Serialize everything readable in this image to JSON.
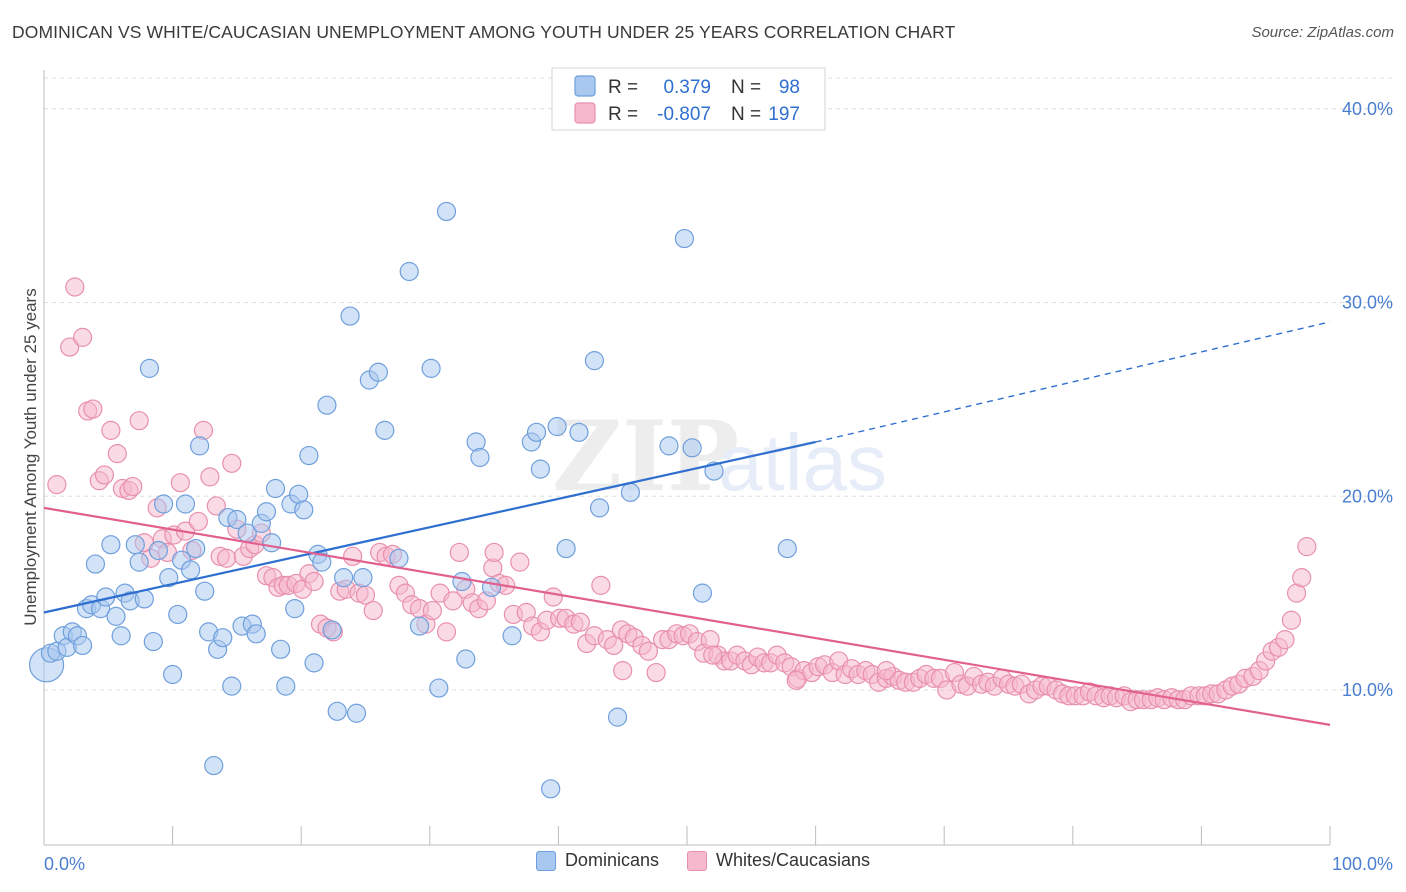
{
  "header": {
    "title": "DOMINICAN VS WHITE/CAUCASIAN UNEMPLOYMENT AMONG YOUTH UNDER 25 YEARS CORRELATION CHART",
    "source": "Source: ZipAtlas.com"
  },
  "watermark": {
    "zip": "ZIP",
    "atlas": "atlas"
  },
  "colors": {
    "blue_fill": "#a8c8ef",
    "blue_stroke": "#6f9fdc",
    "blue_line": "#2f6fd0",
    "pink_fill": "#f6b8cc",
    "pink_stroke": "#e88fae",
    "pink_line": "#e0608f",
    "tick_label": "#4a7ed0",
    "grid": "#dddddd"
  },
  "stats_legend": {
    "rows": [
      {
        "r_label": "R =",
        "r_value": "0.379",
        "n_label": "N =",
        "n_value": "98",
        "color": "blue"
      },
      {
        "r_label": "R =",
        "r_value": "-0.807",
        "n_label": "N =",
        "n_value": "197",
        "color": "pink"
      }
    ]
  },
  "bottom_legend": {
    "items": [
      {
        "label": "Dominicans",
        "color": "blue"
      },
      {
        "label": "Whites/Caucasians",
        "color": "pink"
      }
    ]
  },
  "chart_data": {
    "type": "scatter",
    "title": "DOMINICAN VS WHITE/CAUCASIAN UNEMPLOYMENT AMONG YOUTH UNDER 25 YEARS CORRELATION CHART",
    "xlabel": "",
    "ylabel": "Unemployment Among Youth under 25 years",
    "xlim": [
      0,
      100
    ],
    "ylim": [
      2,
      42
    ],
    "x_tick_labels": [
      "0.0%",
      "100.0%"
    ],
    "y_ticks": [
      10,
      20,
      30,
      40
    ],
    "y_tick_labels": [
      "10.0%",
      "20.0%",
      "30.0%",
      "40.0%"
    ],
    "grid": true,
    "legend_position": "top-center",
    "series": [
      {
        "name": "Dominicans",
        "color": "blue",
        "trend": {
          "x": [
            0,
            60
          ],
          "y": [
            14.0,
            22.8
          ],
          "dashed_to_x": 100,
          "dashed_to_y": 29.0
        },
        "points": [
          [
            0.2,
            11.3
          ],
          [
            0.5,
            11.9
          ],
          [
            1,
            12.0
          ],
          [
            1.5,
            12.8
          ],
          [
            1.8,
            12.2
          ],
          [
            2.2,
            13.0
          ],
          [
            2.6,
            12.8
          ],
          [
            3,
            12.3
          ],
          [
            3.3,
            14.2
          ],
          [
            3.7,
            14.4
          ],
          [
            4,
            16.5
          ],
          [
            4.4,
            14.2
          ],
          [
            4.8,
            14.8
          ],
          [
            5.2,
            17.5
          ],
          [
            5.6,
            13.8
          ],
          [
            6,
            12.8
          ],
          [
            6.3,
            15.0
          ],
          [
            6.7,
            14.6
          ],
          [
            7.1,
            17.5
          ],
          [
            7.4,
            16.6
          ],
          [
            7.8,
            14.7
          ],
          [
            8.2,
            26.6
          ],
          [
            8.5,
            12.5
          ],
          [
            8.9,
            17.2
          ],
          [
            9.3,
            19.6
          ],
          [
            9.7,
            15.8
          ],
          [
            10,
            10.8
          ],
          [
            10.4,
            13.9
          ],
          [
            10.7,
            16.7
          ],
          [
            11,
            19.6
          ],
          [
            11.4,
            16.2
          ],
          [
            11.8,
            17.3
          ],
          [
            12.1,
            22.6
          ],
          [
            12.5,
            15.1
          ],
          [
            12.8,
            13.0
          ],
          [
            13.2,
            6.1
          ],
          [
            13.5,
            12.1
          ],
          [
            13.9,
            12.7
          ],
          [
            14.3,
            18.9
          ],
          [
            14.6,
            10.2
          ],
          [
            15,
            18.8
          ],
          [
            15.4,
            13.3
          ],
          [
            15.8,
            18.1
          ],
          [
            16.2,
            13.4
          ],
          [
            16.5,
            12.9
          ],
          [
            16.9,
            18.6
          ],
          [
            17.3,
            19.2
          ],
          [
            17.7,
            17.6
          ],
          [
            18,
            20.4
          ],
          [
            18.4,
            12.1
          ],
          [
            18.8,
            10.2
          ],
          [
            19.2,
            19.6
          ],
          [
            19.5,
            14.2
          ],
          [
            19.8,
            20.1
          ],
          [
            20.2,
            19.3
          ],
          [
            20.6,
            22.1
          ],
          [
            21,
            11.4
          ],
          [
            21.3,
            17.0
          ],
          [
            21.6,
            16.6
          ],
          [
            22,
            24.7
          ],
          [
            22.4,
            13.1
          ],
          [
            22.8,
            8.9
          ],
          [
            23.3,
            15.8
          ],
          [
            23.8,
            29.3
          ],
          [
            24.3,
            8.8
          ],
          [
            24.8,
            15.8
          ],
          [
            25.3,
            26.0
          ],
          [
            26,
            26.4
          ],
          [
            26.5,
            23.4
          ],
          [
            27.6,
            16.8
          ],
          [
            28.4,
            31.6
          ],
          [
            29.2,
            13.3
          ],
          [
            30.1,
            26.6
          ],
          [
            30.7,
            10.1
          ],
          [
            31.3,
            34.7
          ],
          [
            32.5,
            15.6
          ],
          [
            32.8,
            11.6
          ],
          [
            33.6,
            22.8
          ],
          [
            33.9,
            22.0
          ],
          [
            34.8,
            15.3
          ],
          [
            36.4,
            12.8
          ],
          [
            37.9,
            22.8
          ],
          [
            38.3,
            23.3
          ],
          [
            38.6,
            21.4
          ],
          [
            39.4,
            4.9
          ],
          [
            39.9,
            23.6
          ],
          [
            40.6,
            17.3
          ],
          [
            41.6,
            23.3
          ],
          [
            42.8,
            27.0
          ],
          [
            43.2,
            19.4
          ],
          [
            44.6,
            8.6
          ],
          [
            45.6,
            20.2
          ],
          [
            48.6,
            22.6
          ],
          [
            49.8,
            33.3
          ],
          [
            50.4,
            22.5
          ],
          [
            51.2,
            15.0
          ],
          [
            57.8,
            17.3
          ],
          [
            52.1,
            21.3
          ]
        ]
      },
      {
        "name": "Whites/Caucasians",
        "color": "pink",
        "trend": {
          "x": [
            0,
            100
          ],
          "y": [
            19.4,
            8.2
          ]
        },
        "points": [
          [
            1,
            20.6
          ],
          [
            2,
            27.7
          ],
          [
            2.4,
            30.8
          ],
          [
            3,
            28.2
          ],
          [
            3.4,
            24.4
          ],
          [
            3.8,
            24.5
          ],
          [
            4.3,
            20.8
          ],
          [
            4.7,
            21.1
          ],
          [
            5.2,
            23.4
          ],
          [
            5.7,
            22.2
          ],
          [
            6.1,
            20.4
          ],
          [
            6.6,
            20.3
          ],
          [
            6.9,
            20.5
          ],
          [
            7.4,
            23.9
          ],
          [
            7.8,
            17.6
          ],
          [
            8.3,
            16.8
          ],
          [
            8.8,
            19.4
          ],
          [
            9.2,
            17.8
          ],
          [
            9.6,
            17.1
          ],
          [
            10.1,
            18.0
          ],
          [
            10.6,
            20.7
          ],
          [
            11,
            18.2
          ],
          [
            11.5,
            17.2
          ],
          [
            12,
            18.7
          ],
          [
            12.4,
            23.4
          ],
          [
            12.9,
            21.0
          ],
          [
            13.4,
            19.5
          ],
          [
            13.7,
            16.9
          ],
          [
            14.2,
            16.8
          ],
          [
            14.6,
            21.7
          ],
          [
            15,
            18.3
          ],
          [
            15.5,
            16.9
          ],
          [
            16,
            17.3
          ],
          [
            16.4,
            17.5
          ],
          [
            16.9,
            18.1
          ],
          [
            17.3,
            15.9
          ],
          [
            17.8,
            15.8
          ],
          [
            18.2,
            15.3
          ],
          [
            18.6,
            15.4
          ],
          [
            19,
            15.4
          ],
          [
            19.6,
            15.5
          ],
          [
            20.1,
            15.2
          ],
          [
            20.6,
            16.0
          ],
          [
            21,
            15.6
          ],
          [
            21.5,
            13.4
          ],
          [
            22,
            13.2
          ],
          [
            22.5,
            13.0
          ],
          [
            23,
            15.1
          ],
          [
            23.5,
            15.2
          ],
          [
            24,
            16.9
          ],
          [
            24.5,
            15.0
          ],
          [
            25,
            14.9
          ],
          [
            25.6,
            14.1
          ],
          [
            26.1,
            17.1
          ],
          [
            26.6,
            16.9
          ],
          [
            27.1,
            17.0
          ],
          [
            27.6,
            15.4
          ],
          [
            28.1,
            15.0
          ],
          [
            28.6,
            14.4
          ],
          [
            29.2,
            14.2
          ],
          [
            29.7,
            13.4
          ],
          [
            30.2,
            14.1
          ],
          [
            30.8,
            15.0
          ],
          [
            31.3,
            13.0
          ],
          [
            31.8,
            14.6
          ],
          [
            32.3,
            17.1
          ],
          [
            32.8,
            15.2
          ],
          [
            33.3,
            14.5
          ],
          [
            33.8,
            14.2
          ],
          [
            34.4,
            14.6
          ],
          [
            34.9,
            16.3
          ],
          [
            35.4,
            15.5
          ],
          [
            35.9,
            15.4
          ],
          [
            36.5,
            13.9
          ],
          [
            37,
            16.6
          ],
          [
            37.5,
            14.0
          ],
          [
            38,
            13.3
          ],
          [
            38.6,
            13.0
          ],
          [
            39.1,
            13.6
          ],
          [
            39.6,
            14.8
          ],
          [
            40.1,
            13.7
          ],
          [
            40.6,
            13.7
          ],
          [
            41.2,
            13.4
          ],
          [
            41.7,
            13.5
          ],
          [
            42.2,
            12.4
          ],
          [
            42.8,
            12.8
          ],
          [
            43.3,
            15.4
          ],
          [
            43.8,
            12.6
          ],
          [
            44.3,
            12.3
          ],
          [
            44.9,
            13.1
          ],
          [
            45.4,
            12.9
          ],
          [
            45.9,
            12.7
          ],
          [
            46.5,
            12.3
          ],
          [
            47,
            12.0
          ],
          [
            47.6,
            10.9
          ],
          [
            48.1,
            12.6
          ],
          [
            48.6,
            12.6
          ],
          [
            49.2,
            12.9
          ],
          [
            49.7,
            12.8
          ],
          [
            50.2,
            12.9
          ],
          [
            50.8,
            12.5
          ],
          [
            51.3,
            11.9
          ],
          [
            51.8,
            12.6
          ],
          [
            52.4,
            11.8
          ],
          [
            52.9,
            11.5
          ],
          [
            53.4,
            11.5
          ],
          [
            53.9,
            11.8
          ],
          [
            54.5,
            11.5
          ],
          [
            55,
            11.3
          ],
          [
            55.5,
            11.7
          ],
          [
            56,
            11.4
          ],
          [
            56.5,
            11.4
          ],
          [
            57,
            11.8
          ],
          [
            57.6,
            11.4
          ],
          [
            58.1,
            11.2
          ],
          [
            58.6,
            10.6
          ],
          [
            59.1,
            11.0
          ],
          [
            59.7,
            10.9
          ],
          [
            60.2,
            11.2
          ],
          [
            60.7,
            11.3
          ],
          [
            61.3,
            10.9
          ],
          [
            61.8,
            11.5
          ],
          [
            62.3,
            10.8
          ],
          [
            62.8,
            11.1
          ],
          [
            63.3,
            10.8
          ],
          [
            63.9,
            11.0
          ],
          [
            64.4,
            10.8
          ],
          [
            64.9,
            10.4
          ],
          [
            65.5,
            10.6
          ],
          [
            66,
            10.7
          ],
          [
            66.5,
            10.5
          ],
          [
            67,
            10.4
          ],
          [
            67.6,
            10.4
          ],
          [
            68.1,
            10.6
          ],
          [
            68.6,
            10.8
          ],
          [
            69.2,
            10.6
          ],
          [
            69.7,
            10.6
          ],
          [
            70.2,
            10.0
          ],
          [
            70.8,
            10.9
          ],
          [
            71.3,
            10.3
          ],
          [
            71.8,
            10.2
          ],
          [
            72.3,
            10.7
          ],
          [
            72.9,
            10.3
          ],
          [
            73.4,
            10.4
          ],
          [
            73.9,
            10.2
          ],
          [
            74.5,
            10.6
          ],
          [
            75,
            10.3
          ],
          [
            75.5,
            10.2
          ],
          [
            76,
            10.3
          ],
          [
            76.6,
            9.8
          ],
          [
            77.1,
            10.0
          ],
          [
            77.6,
            10.2
          ],
          [
            78.1,
            10.2
          ],
          [
            78.7,
            10.0
          ],
          [
            79.2,
            9.8
          ],
          [
            79.7,
            9.7
          ],
          [
            80.2,
            9.7
          ],
          [
            80.8,
            9.7
          ],
          [
            81.3,
            9.9
          ],
          [
            81.8,
            9.7
          ],
          [
            82.4,
            9.6
          ],
          [
            82.9,
            9.7
          ],
          [
            83.4,
            9.6
          ],
          [
            84,
            9.7
          ],
          [
            84.5,
            9.4
          ],
          [
            85,
            9.5
          ],
          [
            85.5,
            9.5
          ],
          [
            86.1,
            9.5
          ],
          [
            86.6,
            9.6
          ],
          [
            87.1,
            9.5
          ],
          [
            87.7,
            9.6
          ],
          [
            88.2,
            9.5
          ],
          [
            88.7,
            9.5
          ],
          [
            89.2,
            9.7
          ],
          [
            89.8,
            9.7
          ],
          [
            90.3,
            9.7
          ],
          [
            90.8,
            9.8
          ],
          [
            91.3,
            9.8
          ],
          [
            91.9,
            10.0
          ],
          [
            92.4,
            10.2
          ],
          [
            92.9,
            10.3
          ],
          [
            93.4,
            10.6
          ],
          [
            94,
            10.7
          ],
          [
            94.5,
            11.0
          ],
          [
            95,
            11.5
          ],
          [
            95.5,
            12.0
          ],
          [
            96,
            12.2
          ],
          [
            96.5,
            12.6
          ],
          [
            97,
            13.6
          ],
          [
            97.4,
            15.0
          ],
          [
            97.8,
            15.8
          ],
          [
            98.2,
            17.4
          ],
          [
            65.5,
            11.0
          ],
          [
            58.5,
            10.5
          ],
          [
            45,
            11.0
          ],
          [
            52,
            11.8
          ],
          [
            35,
            17.1
          ]
        ]
      }
    ]
  }
}
